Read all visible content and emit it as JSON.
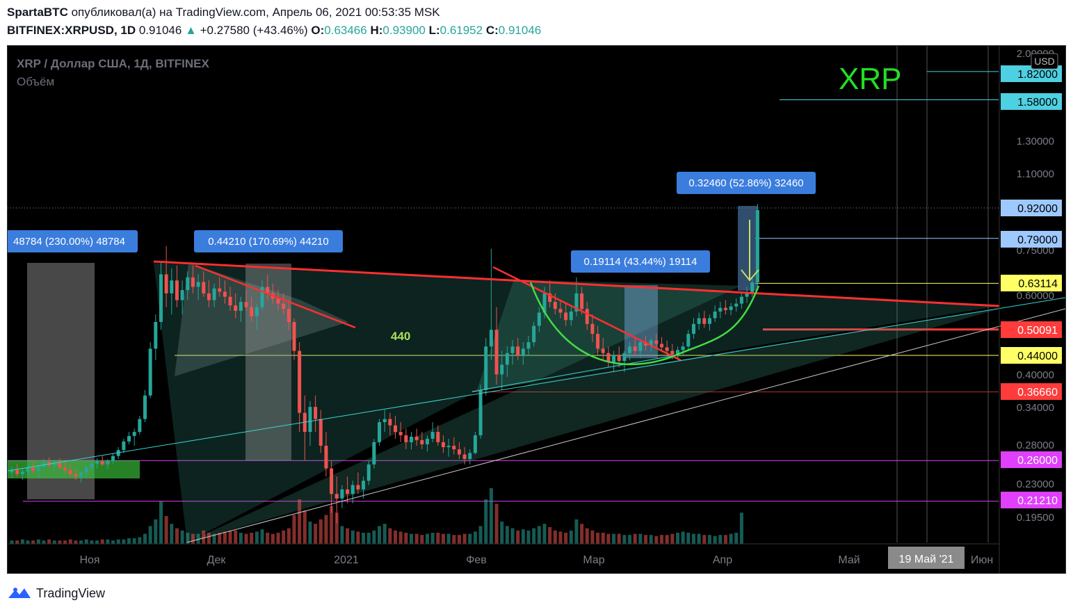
{
  "header": {
    "author": "SpartaBTC",
    "published": "опубликовал(а) на TradingView.com, Апрель 06, 2021 00:53:35 MSK",
    "symbol": "BITFINEX:XRPUSD, 1D",
    "last": "0.91046",
    "change": "+0.27580 (+43.46%)",
    "o_label": "O:",
    "o": "0.63466",
    "h_label": "H:",
    "h": "0.93900",
    "l_label": "L:",
    "l": "0.61952",
    "c_label": "C:",
    "c": "0.91046"
  },
  "legend": {
    "title": "XRP / Доллар США, 1Д, BITFINEX",
    "volume": "Объём"
  },
  "watermark": "XRP",
  "footer": {
    "brand": "TradingView"
  },
  "colors": {
    "bull": "#26a69a",
    "bear": "#ef5350",
    "resistance": "#ff3030",
    "support_line": "#3ad6d6",
    "fib_yellow": "#ffff66",
    "magenta": "#e040fb",
    "watermark": "#22e022"
  },
  "chart_data": {
    "type": "candlestick",
    "currency_label": "USD",
    "price_axis_ticks": [
      "2.00000",
      "1.30000",
      "1.10000",
      "0.75000",
      "0.60000",
      "0.40000",
      "0.34000",
      "0.28000",
      "0.23000",
      "0.19500"
    ],
    "price_badges": [
      {
        "value": "1.82000",
        "bg": "#4dd0e1",
        "fg": "#000000"
      },
      {
        "value": "1.58000",
        "bg": "#4dd0e1",
        "fg": "#000000"
      },
      {
        "value": "0.92000",
        "bg": "#9ec9ff",
        "fg": "#000000"
      },
      {
        "value": "0.79000",
        "bg": "#9ec9ff",
        "fg": "#000000"
      },
      {
        "value": "0.63114",
        "bg": "#ffff66",
        "fg": "#000000"
      },
      {
        "value": "0.50091",
        "bg": "#ff3b3b",
        "fg": "#ffffff"
      },
      {
        "value": "0.44000",
        "bg": "#ffff66",
        "fg": "#000000"
      },
      {
        "value": "0.36660",
        "bg": "#ff3b3b",
        "fg": "#ffffff"
      },
      {
        "value": "0.26000",
        "bg": "#e040fb",
        "fg": "#ffffff"
      },
      {
        "value": "0.21210",
        "bg": "#e040fb",
        "fg": "#ffffff"
      }
    ],
    "time_axis_ticks": [
      "Ноя",
      "Дек",
      "2021",
      "Фев",
      "Мар",
      "Апр",
      "Май",
      "Июн"
    ],
    "crosshair_date": "19 Май '21",
    "measure_labels": [
      "48784 (230.00%) 48784",
      "0.44210 (170.69%) 44210",
      "0.19114 (43.44%) 19114",
      "0.32460 (52.86%) 32460"
    ],
    "annotation_text": "440",
    "candles": [
      {
        "o": 0.245,
        "h": 0.252,
        "l": 0.238,
        "c": 0.248
      },
      {
        "o": 0.248,
        "h": 0.256,
        "l": 0.24,
        "c": 0.243
      },
      {
        "o": 0.243,
        "h": 0.25,
        "l": 0.236,
        "c": 0.246
      },
      {
        "o": 0.246,
        "h": 0.255,
        "l": 0.241,
        "c": 0.251
      },
      {
        "o": 0.251,
        "h": 0.258,
        "l": 0.244,
        "c": 0.247
      },
      {
        "o": 0.247,
        "h": 0.254,
        "l": 0.24,
        "c": 0.252
      },
      {
        "o": 0.252,
        "h": 0.262,
        "l": 0.247,
        "c": 0.258
      },
      {
        "o": 0.258,
        "h": 0.264,
        "l": 0.25,
        "c": 0.254
      },
      {
        "o": 0.254,
        "h": 0.261,
        "l": 0.246,
        "c": 0.257
      },
      {
        "o": 0.257,
        "h": 0.263,
        "l": 0.249,
        "c": 0.251
      },
      {
        "o": 0.251,
        "h": 0.258,
        "l": 0.243,
        "c": 0.248
      },
      {
        "o": 0.248,
        "h": 0.255,
        "l": 0.239,
        "c": 0.243
      },
      {
        "o": 0.243,
        "h": 0.249,
        "l": 0.236,
        "c": 0.24
      },
      {
        "o": 0.24,
        "h": 0.247,
        "l": 0.233,
        "c": 0.245
      },
      {
        "o": 0.245,
        "h": 0.254,
        "l": 0.24,
        "c": 0.251
      },
      {
        "o": 0.251,
        "h": 0.259,
        "l": 0.246,
        "c": 0.256
      },
      {
        "o": 0.256,
        "h": 0.263,
        "l": 0.25,
        "c": 0.259
      },
      {
        "o": 0.259,
        "h": 0.266,
        "l": 0.253,
        "c": 0.255
      },
      {
        "o": 0.255,
        "h": 0.262,
        "l": 0.249,
        "c": 0.26
      },
      {
        "o": 0.26,
        "h": 0.27,
        "l": 0.256,
        "c": 0.266
      },
      {
        "o": 0.266,
        "h": 0.278,
        "l": 0.262,
        "c": 0.274
      },
      {
        "o": 0.274,
        "h": 0.29,
        "l": 0.27,
        "c": 0.286
      },
      {
        "o": 0.286,
        "h": 0.3,
        "l": 0.282,
        "c": 0.294
      },
      {
        "o": 0.294,
        "h": 0.305,
        "l": 0.28,
        "c": 0.3
      },
      {
        "o": 0.3,
        "h": 0.325,
        "l": 0.296,
        "c": 0.32
      },
      {
        "o": 0.32,
        "h": 0.37,
        "l": 0.315,
        "c": 0.36
      },
      {
        "o": 0.36,
        "h": 0.47,
        "l": 0.355,
        "c": 0.455
      },
      {
        "o": 0.455,
        "h": 0.54,
        "l": 0.43,
        "c": 0.52
      },
      {
        "o": 0.52,
        "h": 0.7,
        "l": 0.5,
        "c": 0.66
      },
      {
        "o": 0.66,
        "h": 0.76,
        "l": 0.56,
        "c": 0.6
      },
      {
        "o": 0.6,
        "h": 0.68,
        "l": 0.54,
        "c": 0.64
      },
      {
        "o": 0.64,
        "h": 0.69,
        "l": 0.56,
        "c": 0.58
      },
      {
        "o": 0.58,
        "h": 0.64,
        "l": 0.54,
        "c": 0.61
      },
      {
        "o": 0.61,
        "h": 0.67,
        "l": 0.58,
        "c": 0.65
      },
      {
        "o": 0.65,
        "h": 0.69,
        "l": 0.6,
        "c": 0.62
      },
      {
        "o": 0.62,
        "h": 0.66,
        "l": 0.58,
        "c": 0.635
      },
      {
        "o": 0.635,
        "h": 0.67,
        "l": 0.59,
        "c": 0.6
      },
      {
        "o": 0.6,
        "h": 0.64,
        "l": 0.56,
        "c": 0.58
      },
      {
        "o": 0.58,
        "h": 0.63,
        "l": 0.56,
        "c": 0.615
      },
      {
        "o": 0.615,
        "h": 0.65,
        "l": 0.59,
        "c": 0.605
      },
      {
        "o": 0.605,
        "h": 0.64,
        "l": 0.57,
        "c": 0.59
      },
      {
        "o": 0.59,
        "h": 0.62,
        "l": 0.55,
        "c": 0.565
      },
      {
        "o": 0.565,
        "h": 0.6,
        "l": 0.53,
        "c": 0.55
      },
      {
        "o": 0.55,
        "h": 0.59,
        "l": 0.52,
        "c": 0.575
      },
      {
        "o": 0.575,
        "h": 0.61,
        "l": 0.55,
        "c": 0.56
      },
      {
        "o": 0.56,
        "h": 0.59,
        "l": 0.52,
        "c": 0.535
      },
      {
        "o": 0.535,
        "h": 0.57,
        "l": 0.5,
        "c": 0.56
      },
      {
        "o": 0.56,
        "h": 0.64,
        "l": 0.55,
        "c": 0.62
      },
      {
        "o": 0.62,
        "h": 0.66,
        "l": 0.58,
        "c": 0.6
      },
      {
        "o": 0.6,
        "h": 0.63,
        "l": 0.57,
        "c": 0.585
      },
      {
        "o": 0.585,
        "h": 0.61,
        "l": 0.55,
        "c": 0.57
      },
      {
        "o": 0.57,
        "h": 0.6,
        "l": 0.54,
        "c": 0.555
      },
      {
        "o": 0.555,
        "h": 0.58,
        "l": 0.5,
        "c": 0.52
      },
      {
        "o": 0.52,
        "h": 0.53,
        "l": 0.43,
        "c": 0.45
      },
      {
        "o": 0.45,
        "h": 0.47,
        "l": 0.3,
        "c": 0.33
      },
      {
        "o": 0.33,
        "h": 0.36,
        "l": 0.26,
        "c": 0.3
      },
      {
        "o": 0.3,
        "h": 0.35,
        "l": 0.28,
        "c": 0.34
      },
      {
        "o": 0.34,
        "h": 0.36,
        "l": 0.3,
        "c": 0.32
      },
      {
        "o": 0.32,
        "h": 0.335,
        "l": 0.27,
        "c": 0.28
      },
      {
        "o": 0.28,
        "h": 0.3,
        "l": 0.24,
        "c": 0.25
      },
      {
        "o": 0.25,
        "h": 0.26,
        "l": 0.2,
        "c": 0.22
      },
      {
        "o": 0.22,
        "h": 0.24,
        "l": 0.19,
        "c": 0.215
      },
      {
        "o": 0.215,
        "h": 0.23,
        "l": 0.205,
        "c": 0.225
      },
      {
        "o": 0.225,
        "h": 0.24,
        "l": 0.21,
        "c": 0.22
      },
      {
        "o": 0.22,
        "h": 0.235,
        "l": 0.21,
        "c": 0.23
      },
      {
        "o": 0.23,
        "h": 0.245,
        "l": 0.22,
        "c": 0.225
      },
      {
        "o": 0.225,
        "h": 0.24,
        "l": 0.215,
        "c": 0.235
      },
      {
        "o": 0.235,
        "h": 0.26,
        "l": 0.23,
        "c": 0.255
      },
      {
        "o": 0.255,
        "h": 0.29,
        "l": 0.25,
        "c": 0.285
      },
      {
        "o": 0.285,
        "h": 0.32,
        "l": 0.28,
        "c": 0.315
      },
      {
        "o": 0.315,
        "h": 0.335,
        "l": 0.3,
        "c": 0.32
      },
      {
        "o": 0.32,
        "h": 0.33,
        "l": 0.295,
        "c": 0.31
      },
      {
        "o": 0.31,
        "h": 0.325,
        "l": 0.29,
        "c": 0.3
      },
      {
        "o": 0.3,
        "h": 0.315,
        "l": 0.285,
        "c": 0.295
      },
      {
        "o": 0.295,
        "h": 0.305,
        "l": 0.275,
        "c": 0.285
      },
      {
        "o": 0.285,
        "h": 0.3,
        "l": 0.275,
        "c": 0.293
      },
      {
        "o": 0.293,
        "h": 0.305,
        "l": 0.28,
        "c": 0.288
      },
      {
        "o": 0.288,
        "h": 0.3,
        "l": 0.275,
        "c": 0.282
      },
      {
        "o": 0.282,
        "h": 0.295,
        "l": 0.272,
        "c": 0.29
      },
      {
        "o": 0.29,
        "h": 0.315,
        "l": 0.285,
        "c": 0.3
      },
      {
        "o": 0.3,
        "h": 0.31,
        "l": 0.28,
        "c": 0.285
      },
      {
        "o": 0.285,
        "h": 0.295,
        "l": 0.27,
        "c": 0.278
      },
      {
        "o": 0.278,
        "h": 0.29,
        "l": 0.265,
        "c": 0.28
      },
      {
        "o": 0.28,
        "h": 0.292,
        "l": 0.268,
        "c": 0.275
      },
      {
        "o": 0.275,
        "h": 0.285,
        "l": 0.262,
        "c": 0.268
      },
      {
        "o": 0.268,
        "h": 0.278,
        "l": 0.255,
        "c": 0.262
      },
      {
        "o": 0.262,
        "h": 0.275,
        "l": 0.255,
        "c": 0.27
      },
      {
        "o": 0.27,
        "h": 0.3,
        "l": 0.268,
        "c": 0.295
      },
      {
        "o": 0.295,
        "h": 0.38,
        "l": 0.29,
        "c": 0.37
      },
      {
        "o": 0.37,
        "h": 0.48,
        "l": 0.36,
        "c": 0.46
      },
      {
        "o": 0.46,
        "h": 0.75,
        "l": 0.43,
        "c": 0.5
      },
      {
        "o": 0.5,
        "h": 0.56,
        "l": 0.38,
        "c": 0.4
      },
      {
        "o": 0.4,
        "h": 0.45,
        "l": 0.37,
        "c": 0.42
      },
      {
        "o": 0.42,
        "h": 0.46,
        "l": 0.395,
        "c": 0.445
      },
      {
        "o": 0.445,
        "h": 0.475,
        "l": 0.42,
        "c": 0.46
      },
      {
        "o": 0.46,
        "h": 0.48,
        "l": 0.43,
        "c": 0.44
      },
      {
        "o": 0.44,
        "h": 0.47,
        "l": 0.42,
        "c": 0.455
      },
      {
        "o": 0.455,
        "h": 0.485,
        "l": 0.44,
        "c": 0.47
      },
      {
        "o": 0.47,
        "h": 0.52,
        "l": 0.46,
        "c": 0.51
      },
      {
        "o": 0.51,
        "h": 0.56,
        "l": 0.495,
        "c": 0.545
      },
      {
        "o": 0.545,
        "h": 0.62,
        "l": 0.53,
        "c": 0.6
      },
      {
        "o": 0.6,
        "h": 0.64,
        "l": 0.56,
        "c": 0.575
      },
      {
        "o": 0.575,
        "h": 0.6,
        "l": 0.54,
        "c": 0.555
      },
      {
        "o": 0.555,
        "h": 0.58,
        "l": 0.53,
        "c": 0.545
      },
      {
        "o": 0.545,
        "h": 0.57,
        "l": 0.51,
        "c": 0.525
      },
      {
        "o": 0.525,
        "h": 0.56,
        "l": 0.51,
        "c": 0.548
      },
      {
        "o": 0.548,
        "h": 0.65,
        "l": 0.535,
        "c": 0.6
      },
      {
        "o": 0.6,
        "h": 0.62,
        "l": 0.54,
        "c": 0.555
      },
      {
        "o": 0.555,
        "h": 0.575,
        "l": 0.5,
        "c": 0.515
      },
      {
        "o": 0.515,
        "h": 0.54,
        "l": 0.47,
        "c": 0.49
      },
      {
        "o": 0.49,
        "h": 0.51,
        "l": 0.44,
        "c": 0.455
      },
      {
        "o": 0.455,
        "h": 0.48,
        "l": 0.43,
        "c": 0.445
      },
      {
        "o": 0.445,
        "h": 0.46,
        "l": 0.415,
        "c": 0.425
      },
      {
        "o": 0.425,
        "h": 0.45,
        "l": 0.405,
        "c": 0.44
      },
      {
        "o": 0.44,
        "h": 0.46,
        "l": 0.415,
        "c": 0.428
      },
      {
        "o": 0.428,
        "h": 0.45,
        "l": 0.405,
        "c": 0.445
      },
      {
        "o": 0.445,
        "h": 0.47,
        "l": 0.43,
        "c": 0.46
      },
      {
        "o": 0.46,
        "h": 0.48,
        "l": 0.44,
        "c": 0.45
      },
      {
        "o": 0.45,
        "h": 0.475,
        "l": 0.435,
        "c": 0.47
      },
      {
        "o": 0.47,
        "h": 0.485,
        "l": 0.45,
        "c": 0.462
      },
      {
        "o": 0.462,
        "h": 0.48,
        "l": 0.448,
        "c": 0.474
      },
      {
        "o": 0.474,
        "h": 0.49,
        "l": 0.455,
        "c": 0.466
      },
      {
        "o": 0.466,
        "h": 0.482,
        "l": 0.45,
        "c": 0.458
      },
      {
        "o": 0.458,
        "h": 0.474,
        "l": 0.44,
        "c": 0.45
      },
      {
        "o": 0.45,
        "h": 0.466,
        "l": 0.432,
        "c": 0.442
      },
      {
        "o": 0.442,
        "h": 0.46,
        "l": 0.43,
        "c": 0.452
      },
      {
        "o": 0.452,
        "h": 0.47,
        "l": 0.44,
        "c": 0.46
      },
      {
        "o": 0.46,
        "h": 0.5,
        "l": 0.452,
        "c": 0.49
      },
      {
        "o": 0.49,
        "h": 0.53,
        "l": 0.478,
        "c": 0.515
      },
      {
        "o": 0.515,
        "h": 0.545,
        "l": 0.5,
        "c": 0.53
      },
      {
        "o": 0.53,
        "h": 0.55,
        "l": 0.505,
        "c": 0.515
      },
      {
        "o": 0.515,
        "h": 0.54,
        "l": 0.498,
        "c": 0.53
      },
      {
        "o": 0.53,
        "h": 0.565,
        "l": 0.52,
        "c": 0.548
      },
      {
        "o": 0.548,
        "h": 0.575,
        "l": 0.53,
        "c": 0.558
      },
      {
        "o": 0.558,
        "h": 0.58,
        "l": 0.54,
        "c": 0.552
      },
      {
        "o": 0.552,
        "h": 0.572,
        "l": 0.538,
        "c": 0.562
      },
      {
        "o": 0.562,
        "h": 0.585,
        "l": 0.548,
        "c": 0.57
      },
      {
        "o": 0.57,
        "h": 0.6,
        "l": 0.556,
        "c": 0.59
      },
      {
        "o": 0.59,
        "h": 0.62,
        "l": 0.572,
        "c": 0.6
      },
      {
        "o": 0.6,
        "h": 0.65,
        "l": 0.59,
        "c": 0.634
      },
      {
        "o": 0.634,
        "h": 0.939,
        "l": 0.62,
        "c": 0.91
      }
    ],
    "volumes": [
      3,
      3,
      4,
      3,
      3,
      4,
      3,
      4,
      3,
      3,
      3,
      4,
      3,
      3,
      4,
      3,
      3,
      4,
      4,
      3,
      4,
      4,
      5,
      5,
      6,
      9,
      16,
      22,
      38,
      25,
      18,
      14,
      12,
      10,
      9,
      9,
      12,
      10,
      9,
      10,
      11,
      12,
      12,
      10,
      9,
      10,
      11,
      13,
      10,
      9,
      10,
      12,
      14,
      26,
      40,
      30,
      20,
      18,
      22,
      26,
      34,
      28,
      16,
      14,
      12,
      11,
      10,
      10,
      12,
      16,
      18,
      14,
      12,
      11,
      10,
      9,
      9,
      8,
      9,
      10,
      10,
      9,
      9,
      8,
      8,
      9,
      9,
      11,
      16,
      40,
      50,
      36,
      20,
      16,
      14,
      12,
      13,
      12,
      14,
      16,
      18,
      15,
      12,
      11,
      10,
      12,
      22,
      18,
      14,
      12,
      10,
      10,
      9,
      9,
      9,
      8,
      8,
      9,
      9,
      8,
      8,
      7,
      8,
      8,
      9,
      10,
      11,
      10,
      9,
      9,
      8,
      8,
      7,
      8,
      8,
      9,
      10,
      28
    ]
  }
}
